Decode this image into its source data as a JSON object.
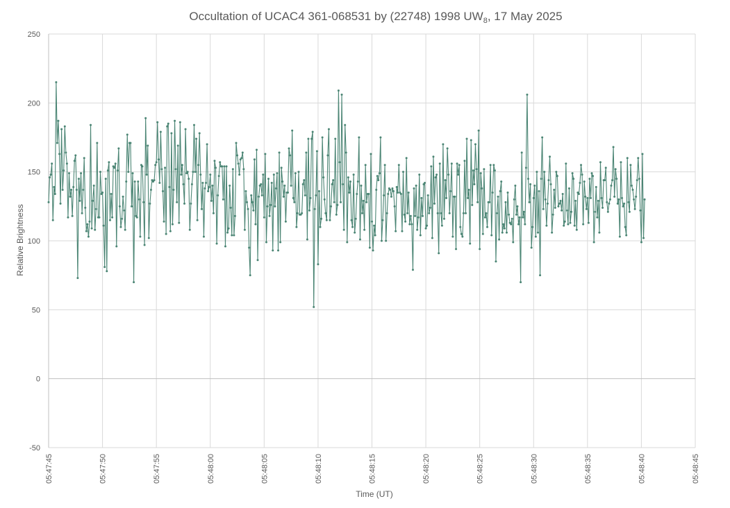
{
  "chart_data": {
    "type": "line",
    "title": {
      "main": "Occultation of UCAC4 361-068531 by (22748) 1998 UW",
      "sub": "8",
      "tail": ", 17 May 2025"
    },
    "xlabel": "Time (UT)",
    "ylabel": "Relative Brightness",
    "ylim": [
      -50,
      250
    ],
    "y_ticks": [
      -50,
      0,
      50,
      100,
      150,
      200,
      250
    ],
    "x_range": [
      "05:47:45",
      "05:48:45"
    ],
    "x_ticks": [
      "05:47:45",
      "05:47:50",
      "05:47:55",
      "05:48:00",
      "05:48:05",
      "05:48:10",
      "05:48:15",
      "05:48:20",
      "05:48:25",
      "05:48:30",
      "05:48:35",
      "05:48:40",
      "05:48:45"
    ],
    "grid": true,
    "legend": "none",
    "line_color": "#4b8574",
    "marker": "small-dot",
    "series": [
      {
        "x_start": "05:47:45",
        "x_step_seconds": 0.1,
        "values": [
          128,
          146,
          148,
          156,
          115,
          139,
          134,
          215,
          171,
          187,
          163,
          127,
          181,
          137,
          151,
          183,
          164,
          156,
          117,
          149,
          132,
          137,
          118,
          139,
          158,
          162,
          137,
          73,
          145,
          129,
          149,
          120,
          137,
          160,
          124,
          107,
          112,
          103,
          114,
          184,
          109,
          129,
          140,
          108,
          123,
          171,
          117,
          117,
          150,
          134,
          135,
          111,
          81,
          145,
          78,
          151,
          157,
          115,
          134,
          117,
          154,
          153,
          156,
          96,
          151,
          167,
          125,
          110,
          116,
          132,
          122,
          108,
          143,
          177,
          150,
          171,
          171,
          125,
          149,
          70,
          143,
          118,
          117,
          143,
          130,
          103,
          155,
          154,
          128,
          97,
          189,
          148,
          169,
          102,
          127,
          137,
          144,
          143,
          144,
          155,
          157,
          186,
          159,
          142,
          179,
          152,
          136,
          114,
          153,
          105,
          183,
          185,
          139,
          107,
          178,
          112,
          137,
          187,
          152,
          128,
          169,
          113,
          186,
          148,
          155,
          141,
          127,
          181,
          149,
          150,
          145,
          108,
          127,
          141,
          150,
          184,
          150,
          174,
          115,
          155,
          178,
          148,
          123,
          142,
          103,
          138,
          142,
          170,
          136,
          139,
          148,
          129,
          140,
          120,
          158,
          153,
          98,
          133,
          147,
          157,
          154,
          154,
          130,
          154,
          96,
          154,
          106,
          109,
          140,
          124,
          104,
          152,
          104,
          118,
          171,
          162,
          156,
          148,
          159,
          160,
          164,
          152,
          108,
          136,
          128,
          123,
          95,
          75,
          133,
          128,
          122,
          159,
          112,
          166,
          86,
          132,
          140,
          141,
          133,
          148,
          117,
          163,
          99,
          125,
          145,
          118,
          126,
          142,
          93,
          148,
          125,
          138,
          149,
          93,
          164,
          99,
          153,
          143,
          132,
          140,
          114,
          135,
          135,
          167,
          162,
          140,
          180,
          131,
          128,
          149,
          110,
          120,
          150,
          119,
          119,
          120,
          141,
          144,
          133,
          164,
          101,
          174,
          122,
          131,
          174,
          179,
          52,
          123,
          133,
          165,
          83,
          136,
          110,
          116,
          175,
          146,
          130,
          120,
          115,
          162,
          181,
          115,
          125,
          141,
          144,
          128,
          174,
          119,
          126,
          209,
          157,
          128,
          206,
          141,
          108,
          184,
          164,
          99,
          146,
          135,
          143,
          115,
          110,
          148,
          106,
          116,
          134,
          143,
          175,
          101,
          140,
          120,
          129,
          108,
          155,
          128,
          134,
          134,
          95,
          163,
          114,
          93,
          111,
          104,
          137,
          147,
          144,
          149,
          175,
          100,
          115,
          133,
          155,
          100,
          120,
          134,
          138,
          137,
          132,
          138,
          136,
          125,
          107,
          139,
          135,
          155,
          135,
          134,
          107,
          150,
          119,
          114,
          160,
          120,
          135,
          112,
          118,
          112,
          79,
          138,
          118,
          140,
          108,
          117,
          148,
          104,
          131,
          118,
          141,
          142,
          109,
          111,
          133,
          120,
          124,
          154,
          102,
          161,
          127,
          146,
          148,
          120,
          91,
          156,
          120,
          111,
          170,
          116,
          144,
          131,
          167,
          148,
          120,
          136,
          156,
          103,
          132,
          132,
          94,
          156,
          148,
          155,
          110,
          105,
          103,
          120,
          158,
          120,
          174,
          131,
          137,
          98,
          173,
          126,
          151,
          141,
          170,
          152,
          128,
          180,
          94,
          149,
          138,
          105,
          152,
          117,
          120,
          110,
          128,
          128,
          155,
          104,
          135,
          155,
          151,
          85,
          120,
          132,
          101,
          136,
          143,
          106,
          112,
          109,
          128,
          106,
          135,
          119,
          113,
          112,
          116,
          99,
          130,
          140,
          119,
          125,
          112,
          117,
          70,
          164,
          117,
          121,
          112,
          153,
          206,
          145,
          128,
          141,
          95,
          110,
          131,
          140,
          103,
          150,
          106,
          136,
          75,
          145,
          175,
          123,
          150,
          130,
          111,
          127,
          144,
          161,
          141,
          106,
          119,
          137,
          124,
          150,
          147,
          125,
          127,
          129,
          122,
          134,
          111,
          114,
          156,
          122,
          112,
          138,
          113,
          121,
          149,
          145,
          111,
          129,
          108,
          135,
          134,
          142,
          155,
          148,
          112,
          143,
          132,
          123,
          131,
          113,
          145,
          131,
          149,
          147,
          99,
          121,
          139,
          117,
          129,
          106,
          157,
          131,
          124,
          144,
          144,
          153,
          128,
          121,
          127,
          130,
          140,
          144,
          168,
          132,
          152,
          145,
          127,
          130,
          103,
          157,
          131,
          125,
          127,
          110,
          104,
          160,
          128,
          121,
          155,
          140,
          137,
          130,
          123,
          132,
          144,
          160,
          145,
          122,
          99,
          163,
          102,
          130
        ]
      }
    ]
  }
}
